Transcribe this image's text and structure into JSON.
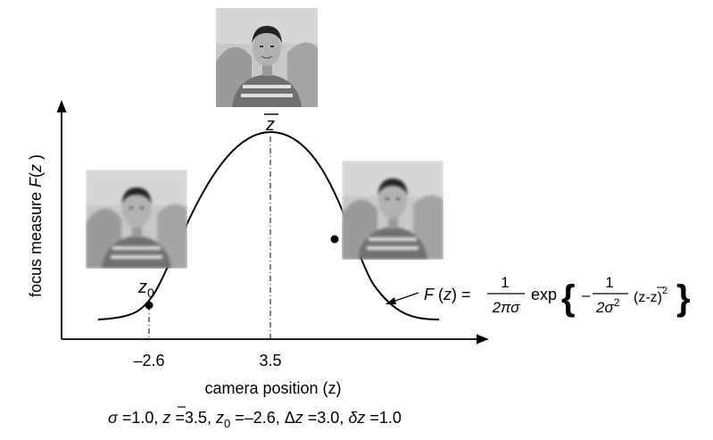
{
  "y_axis_label": {
    "main": "focus measure ",
    "fn": "F",
    "open": "(",
    "var": "z",
    "close": " )"
  },
  "x_axis_label": "camera position (z)",
  "ticks": {
    "left": "–2.6",
    "center": "3.5"
  },
  "peak_label": "z",
  "z0_label": {
    "base": "z",
    "sub": "0"
  },
  "formula": {
    "lhs_fn": "F",
    "lhs_open": " (",
    "lhs_var": "z",
    "lhs_close": ") =",
    "frac1_num": "1",
    "frac1_den": "2πσ",
    "exp": "exp",
    "brace_open": "{",
    "minus": "–",
    "frac2_num": "1",
    "frac2_den": "2σ",
    "frac2_den_sup": "2",
    "tail": "(z-",
    "tail_zbar": "z",
    "tail_close": ")",
    "tail_sup": "2",
    "brace_close": "}"
  },
  "parameters": {
    "sigma": "σ",
    "sigma_eq": " =1.0, ",
    "zbar": "z",
    "zbar_eq": " =3.5, ",
    "z0": "z",
    "z0_sub": "0",
    "z0_eq": " =–2.6, ",
    "dz_sym": "Δ",
    "dz_var": "z",
    "dz_eq": " =3.0, ",
    "delta_sym": "δ",
    "delta_var": "z",
    "delta_eq": " =1.0"
  },
  "images": [
    {
      "id": "photo-left",
      "focus": "blurred"
    },
    {
      "id": "photo-top",
      "focus": "in-focus"
    },
    {
      "id": "photo-right",
      "focus": "blurred"
    }
  ],
  "colors": {
    "line": "#000000",
    "photo_bg": "#c8c8c8"
  }
}
